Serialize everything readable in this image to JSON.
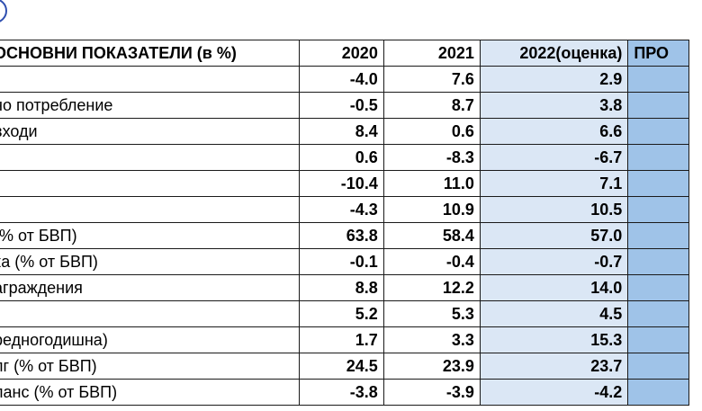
{
  "table": {
    "headers": [
      "ОСНОВНИ ПОКАЗАТЕЛИ (в %)",
      "2020",
      "2021",
      "2022(оценка)",
      "ПРО"
    ],
    "rows": [
      {
        "label": "",
        "values": [
          "-4.0",
          "7.6",
          "2.9",
          ""
        ]
      },
      {
        "label": "но потребление",
        "values": [
          "-0.5",
          "8.7",
          "3.8",
          ""
        ]
      },
      {
        "label": "входи",
        "values": [
          "8.4",
          "0.6",
          "6.6",
          ""
        ]
      },
      {
        "label": "",
        "values": [
          "0.6",
          "-8.3",
          "-6.7",
          ""
        ]
      },
      {
        "label": "",
        "values": [
          "-10.4",
          "11.0",
          "7.1",
          ""
        ]
      },
      {
        "label": "",
        "values": [
          "-4.3",
          "10.9",
          "10.5",
          ""
        ]
      },
      {
        "label": "(% от БВП)",
        "values": [
          "63.8",
          "58.4",
          "57.0",
          ""
        ]
      },
      {
        "label": "ка (% от БВП)",
        "values": [
          "-0.1",
          "-0.4",
          "-0.7",
          ""
        ]
      },
      {
        "label": "аграждения",
        "values": [
          "8.8",
          "12.2",
          "14.0",
          ""
        ]
      },
      {
        "label": "",
        "values": [
          "5.2",
          "5.3",
          "4.5",
          ""
        ]
      },
      {
        "label": "редногодишна)",
        "values": [
          "1.7",
          "3.3",
          "15.3",
          ""
        ]
      },
      {
        "label": "лг (% от БВП)",
        "values": [
          "24.5",
          "23.9",
          "23.7",
          ""
        ]
      },
      {
        "label": "ланс (% от БВП)",
        "values": [
          "-3.8",
          "-3.9",
          "-4.2",
          ""
        ]
      }
    ]
  },
  "colors": {
    "estimate_fill": "#dbe7f5",
    "projection_fill": "#9fc3e8",
    "badge_ring": "#2f4fb0"
  }
}
